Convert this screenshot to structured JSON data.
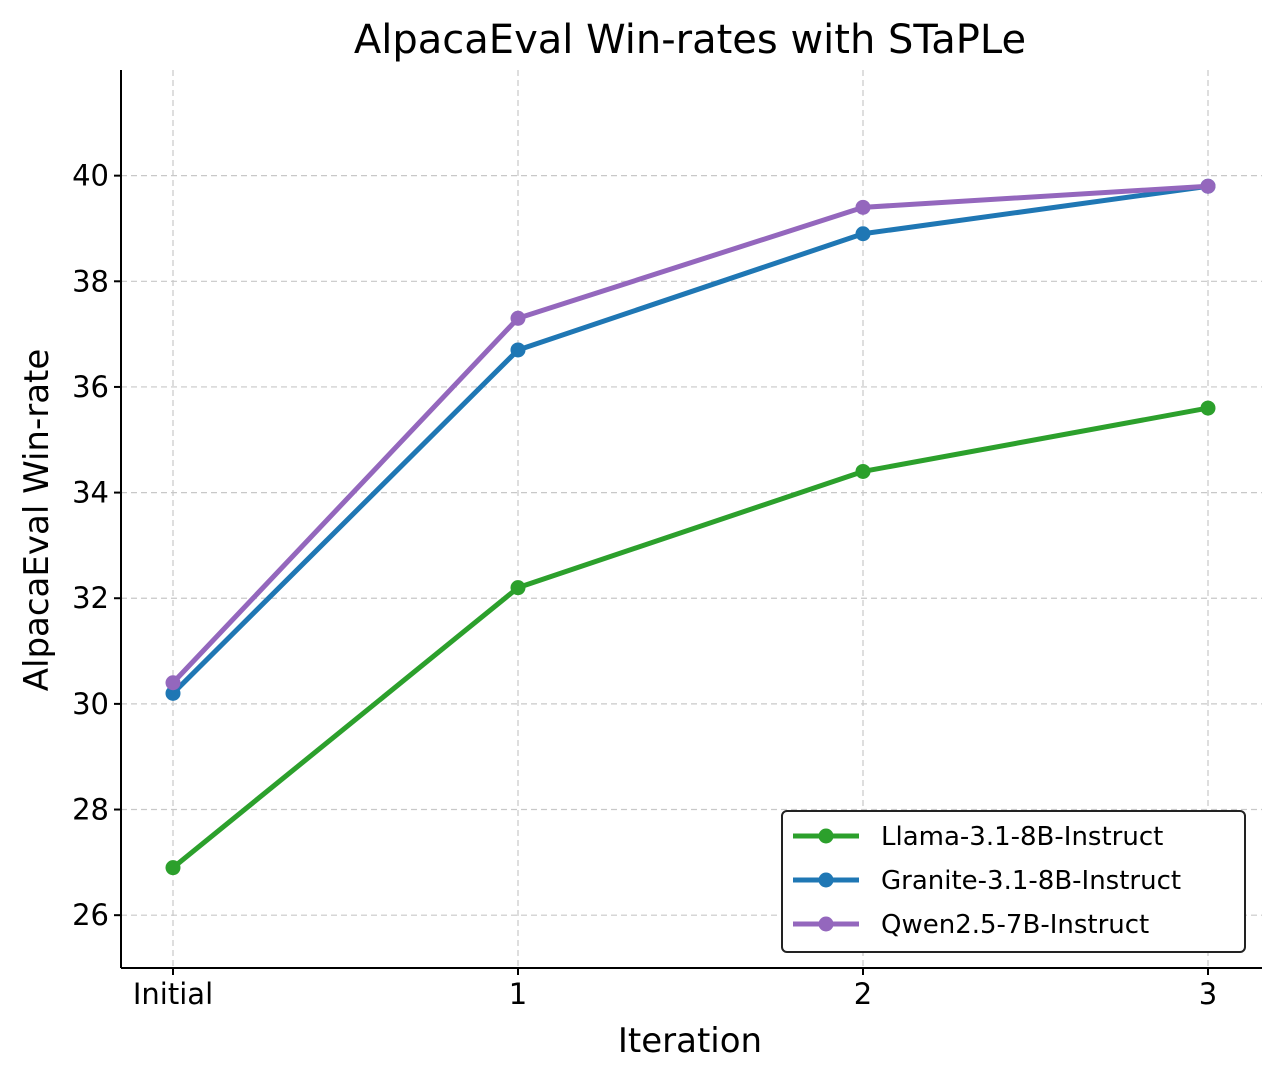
{
  "chart_data": {
    "type": "line",
    "title": "AlpacaEval Win-rates with STaPLe",
    "xlabel": "Iteration",
    "ylabel": "AlpacaEval Win-rate",
    "categories": [
      "Initial",
      "1",
      "2",
      "3"
    ],
    "yticks": [
      "26",
      "28",
      "30",
      "32",
      "34",
      "36",
      "38",
      "40"
    ],
    "ylim": [
      25,
      42
    ],
    "grid": true,
    "legend_position": "bottom-right",
    "series": [
      {
        "name": "Llama-3.1-8B-Instruct",
        "color": "#2ca02c",
        "values": [
          26.9,
          32.2,
          34.4,
          35.6
        ]
      },
      {
        "name": "Granite-3.1-8B-Instruct",
        "color": "#1f77b4",
        "values": [
          30.2,
          36.7,
          38.9,
          39.8
        ]
      },
      {
        "name": "Qwen2.5-7B-Instruct",
        "color": "#9467bd",
        "values": [
          30.4,
          37.3,
          39.4,
          39.8
        ]
      }
    ]
  }
}
